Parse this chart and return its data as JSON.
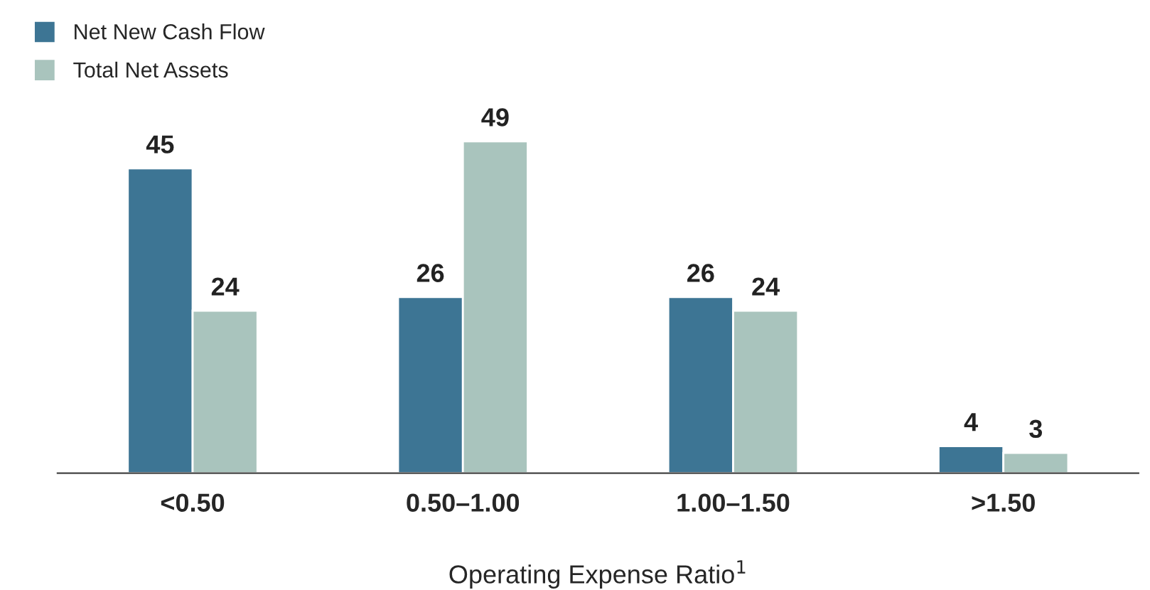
{
  "chart_data": {
    "type": "bar",
    "xlabel": "Operating Expense Ratio$^{1}$",
    "categories": [
      "<0.50",
      "0.50–1.00",
      "1.00–1.50",
      ">1.50"
    ],
    "series": [
      {
        "name": "Net New Cash Flow",
        "color": "#3d7594",
        "values": [
          45,
          26,
          26,
          4
        ]
      },
      {
        "name": "Total Net Assets",
        "color": "#a9c4bd",
        "values": [
          24,
          49,
          24,
          3
        ]
      }
    ],
    "data_labels": true,
    "legend": "top left",
    "grid": false
  }
}
